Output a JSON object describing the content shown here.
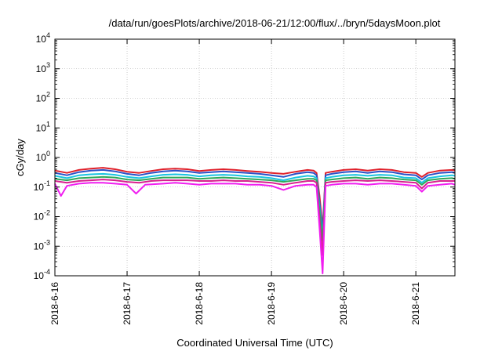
{
  "chart_data": {
    "type": "line",
    "title": "/data/run/goesPlots/archive/2018-06-21/12:00/flux/../bryn/5daysMoon.plot",
    "xlabel": "Coordinated Universal Time (UTC)",
    "ylabel": "cGy/day",
    "yscale": "log",
    "ylim": [
      0.0001,
      10000
    ],
    "xlim": [
      "2018-06-16T00:00",
      "2018-06-21T13:00"
    ],
    "yticks": [
      {
        "value": 0.0001,
        "base": "10",
        "exp": "-4"
      },
      {
        "value": 0.001,
        "base": "10",
        "exp": "-3"
      },
      {
        "value": 0.01,
        "base": "10",
        "exp": "-2"
      },
      {
        "value": 0.1,
        "base": "10",
        "exp": "-1"
      },
      {
        "value": 1,
        "base": "10",
        "exp": "0"
      },
      {
        "value": 10,
        "base": "10",
        "exp": "1"
      },
      {
        "value": 100,
        "base": "10",
        "exp": "2"
      },
      {
        "value": 1000,
        "base": "10",
        "exp": "3"
      },
      {
        "value": 10000,
        "base": "10",
        "exp": "4"
      }
    ],
    "xticks": [
      {
        "value": "2018-06-16T00:00",
        "label": "2018-6-16"
      },
      {
        "value": "2018-06-17T00:00",
        "label": "2018-6-17"
      },
      {
        "value": "2018-06-18T00:00",
        "label": "2018-6-18"
      },
      {
        "value": "2018-06-19T00:00",
        "label": "2018-6-19"
      },
      {
        "value": "2018-06-20T00:00",
        "label": "2018-6-20"
      },
      {
        "value": "2018-06-21T00:00",
        "label": "2018-6-21"
      }
    ],
    "grid": true,
    "legend": "none",
    "series": [
      {
        "color": "#e0202a",
        "points": [
          [
            "2018-06-16T00:00",
            0.36
          ],
          [
            "2018-06-16T04:00",
            0.3
          ],
          [
            "2018-06-16T08:00",
            0.38
          ],
          [
            "2018-06-16T12:00",
            0.42
          ],
          [
            "2018-06-16T16:00",
            0.45
          ],
          [
            "2018-06-16T20:00",
            0.4
          ],
          [
            "2018-06-17T00:00",
            0.33
          ],
          [
            "2018-06-17T04:00",
            0.3
          ],
          [
            "2018-06-17T08:00",
            0.35
          ],
          [
            "2018-06-17T12:00",
            0.4
          ],
          [
            "2018-06-17T16:00",
            0.42
          ],
          [
            "2018-06-17T20:00",
            0.4
          ],
          [
            "2018-06-18T00:00",
            0.35
          ],
          [
            "2018-06-18T04:00",
            0.38
          ],
          [
            "2018-06-18T08:00",
            0.4
          ],
          [
            "2018-06-18T12:00",
            0.38
          ],
          [
            "2018-06-18T16:00",
            0.35
          ],
          [
            "2018-06-18T20:00",
            0.33
          ],
          [
            "2018-06-19T00:00",
            0.3
          ],
          [
            "2018-06-19T04:00",
            0.28
          ],
          [
            "2018-06-19T08:00",
            0.33
          ],
          [
            "2018-06-19T12:00",
            0.38
          ],
          [
            "2018-06-19T14:00",
            0.36
          ],
          [
            "2018-06-19T15:00",
            0.3
          ],
          [
            "2018-06-19T16:00",
            0.05
          ],
          [
            "2018-06-19T17:00",
            0.004
          ],
          [
            "2018-06-19T18:00",
            0.3
          ],
          [
            "2018-06-19T20:00",
            0.33
          ],
          [
            "2018-06-20T00:00",
            0.38
          ],
          [
            "2018-06-20T04:00",
            0.4
          ],
          [
            "2018-06-20T08:00",
            0.36
          ],
          [
            "2018-06-20T12:00",
            0.4
          ],
          [
            "2018-06-20T16:00",
            0.38
          ],
          [
            "2018-06-20T20:00",
            0.32
          ],
          [
            "2018-06-21T00:00",
            0.3
          ],
          [
            "2018-06-21T02:00",
            0.22
          ],
          [
            "2018-06-21T04:00",
            0.3
          ],
          [
            "2018-06-21T08:00",
            0.36
          ],
          [
            "2018-06-21T12:00",
            0.38
          ],
          [
            "2018-06-21T13:00",
            0.36
          ]
        ]
      },
      {
        "color": "#2a52c8",
        "points": [
          [
            "2018-06-16T00:00",
            0.3
          ],
          [
            "2018-06-16T04:00",
            0.25
          ],
          [
            "2018-06-16T08:00",
            0.32
          ],
          [
            "2018-06-16T12:00",
            0.36
          ],
          [
            "2018-06-16T16:00",
            0.38
          ],
          [
            "2018-06-16T20:00",
            0.34
          ],
          [
            "2018-06-17T00:00",
            0.28
          ],
          [
            "2018-06-17T04:00",
            0.25
          ],
          [
            "2018-06-17T08:00",
            0.3
          ],
          [
            "2018-06-17T12:00",
            0.34
          ],
          [
            "2018-06-17T16:00",
            0.36
          ],
          [
            "2018-06-17T20:00",
            0.34
          ],
          [
            "2018-06-18T00:00",
            0.3
          ],
          [
            "2018-06-18T04:00",
            0.32
          ],
          [
            "2018-06-18T08:00",
            0.34
          ],
          [
            "2018-06-18T12:00",
            0.32
          ],
          [
            "2018-06-18T16:00",
            0.3
          ],
          [
            "2018-06-18T20:00",
            0.28
          ],
          [
            "2018-06-19T00:00",
            0.25
          ],
          [
            "2018-06-19T04:00",
            0.22
          ],
          [
            "2018-06-19T08:00",
            0.28
          ],
          [
            "2018-06-19T12:00",
            0.32
          ],
          [
            "2018-06-19T14:00",
            0.3
          ],
          [
            "2018-06-19T15:00",
            0.25
          ],
          [
            "2018-06-19T16:00",
            0.03
          ],
          [
            "2018-06-19T17:00",
            0.003
          ],
          [
            "2018-06-19T18:00",
            0.25
          ],
          [
            "2018-06-19T20:00",
            0.28
          ],
          [
            "2018-06-20T00:00",
            0.32
          ],
          [
            "2018-06-20T04:00",
            0.34
          ],
          [
            "2018-06-20T08:00",
            0.3
          ],
          [
            "2018-06-20T12:00",
            0.34
          ],
          [
            "2018-06-20T16:00",
            0.32
          ],
          [
            "2018-06-20T20:00",
            0.27
          ],
          [
            "2018-06-21T00:00",
            0.25
          ],
          [
            "2018-06-21T02:00",
            0.18
          ],
          [
            "2018-06-21T04:00",
            0.25
          ],
          [
            "2018-06-21T08:00",
            0.3
          ],
          [
            "2018-06-21T12:00",
            0.32
          ],
          [
            "2018-06-21T13:00",
            0.3
          ]
        ]
      },
      {
        "color": "#19c4e0",
        "points": [
          [
            "2018-06-16T00:00",
            0.24
          ],
          [
            "2018-06-16T04:00",
            0.2
          ],
          [
            "2018-06-16T08:00",
            0.25
          ],
          [
            "2018-06-16T12:00",
            0.27
          ],
          [
            "2018-06-16T16:00",
            0.28
          ],
          [
            "2018-06-16T20:00",
            0.26
          ],
          [
            "2018-06-17T00:00",
            0.22
          ],
          [
            "2018-06-17T04:00",
            0.2
          ],
          [
            "2018-06-17T08:00",
            0.23
          ],
          [
            "2018-06-17T12:00",
            0.26
          ],
          [
            "2018-06-17T16:00",
            0.27
          ],
          [
            "2018-06-17T20:00",
            0.26
          ],
          [
            "2018-06-18T00:00",
            0.23
          ],
          [
            "2018-06-18T04:00",
            0.25
          ],
          [
            "2018-06-18T08:00",
            0.26
          ],
          [
            "2018-06-18T12:00",
            0.25
          ],
          [
            "2018-06-18T16:00",
            0.23
          ],
          [
            "2018-06-18T20:00",
            0.22
          ],
          [
            "2018-06-19T00:00",
            0.2
          ],
          [
            "2018-06-19T04:00",
            0.17
          ],
          [
            "2018-06-19T08:00",
            0.21
          ],
          [
            "2018-06-19T12:00",
            0.24
          ],
          [
            "2018-06-19T14:00",
            0.23
          ],
          [
            "2018-06-19T15:00",
            0.2
          ],
          [
            "2018-06-19T16:00",
            0.02
          ],
          [
            "2018-06-19T17:00",
            0.002
          ],
          [
            "2018-06-19T18:00",
            0.2
          ],
          [
            "2018-06-19T20:00",
            0.22
          ],
          [
            "2018-06-20T00:00",
            0.25
          ],
          [
            "2018-06-20T04:00",
            0.26
          ],
          [
            "2018-06-20T08:00",
            0.24
          ],
          [
            "2018-06-20T12:00",
            0.26
          ],
          [
            "2018-06-20T16:00",
            0.25
          ],
          [
            "2018-06-20T20:00",
            0.21
          ],
          [
            "2018-06-21T00:00",
            0.2
          ],
          [
            "2018-06-21T02:00",
            0.14
          ],
          [
            "2018-06-21T04:00",
            0.2
          ],
          [
            "2018-06-21T08:00",
            0.23
          ],
          [
            "2018-06-21T12:00",
            0.25
          ],
          [
            "2018-06-21T13:00",
            0.24
          ]
        ]
      },
      {
        "color": "#2fa85a",
        "points": [
          [
            "2018-06-16T00:00",
            0.19
          ],
          [
            "2018-06-16T04:00",
            0.17
          ],
          [
            "2018-06-16T08:00",
            0.2
          ],
          [
            "2018-06-16T12:00",
            0.21
          ],
          [
            "2018-06-16T16:00",
            0.22
          ],
          [
            "2018-06-16T20:00",
            0.21
          ],
          [
            "2018-06-17T00:00",
            0.18
          ],
          [
            "2018-06-17T04:00",
            0.17
          ],
          [
            "2018-06-17T08:00",
            0.19
          ],
          [
            "2018-06-17T12:00",
            0.21
          ],
          [
            "2018-06-17T16:00",
            0.21
          ],
          [
            "2018-06-17T20:00",
            0.21
          ],
          [
            "2018-06-18T00:00",
            0.19
          ],
          [
            "2018-06-18T04:00",
            0.2
          ],
          [
            "2018-06-18T08:00",
            0.21
          ],
          [
            "2018-06-18T12:00",
            0.2
          ],
          [
            "2018-06-18T16:00",
            0.19
          ],
          [
            "2018-06-18T20:00",
            0.18
          ],
          [
            "2018-06-19T00:00",
            0.17
          ],
          [
            "2018-06-19T04:00",
            0.15
          ],
          [
            "2018-06-19T08:00",
            0.17
          ],
          [
            "2018-06-19T12:00",
            0.19
          ],
          [
            "2018-06-19T14:00",
            0.19
          ],
          [
            "2018-06-19T15:00",
            0.17
          ],
          [
            "2018-06-19T16:00",
            0.015
          ],
          [
            "2018-06-19T17:00",
            0.0015
          ],
          [
            "2018-06-19T18:00",
            0.17
          ],
          [
            "2018-06-19T20:00",
            0.18
          ],
          [
            "2018-06-20T00:00",
            0.2
          ],
          [
            "2018-06-20T04:00",
            0.21
          ],
          [
            "2018-06-20T08:00",
            0.19
          ],
          [
            "2018-06-20T12:00",
            0.21
          ],
          [
            "2018-06-20T16:00",
            0.2
          ],
          [
            "2018-06-20T20:00",
            0.18
          ],
          [
            "2018-06-21T00:00",
            0.17
          ],
          [
            "2018-06-21T02:00",
            0.12
          ],
          [
            "2018-06-21T04:00",
            0.17
          ],
          [
            "2018-06-21T08:00",
            0.19
          ],
          [
            "2018-06-21T12:00",
            0.2
          ],
          [
            "2018-06-21T13:00",
            0.19
          ]
        ]
      },
      {
        "color": "#d81f8e",
        "points": [
          [
            "2018-06-16T00:00",
            0.16
          ],
          [
            "2018-06-16T04:00",
            0.14
          ],
          [
            "2018-06-16T08:00",
            0.16
          ],
          [
            "2018-06-16T12:00",
            0.17
          ],
          [
            "2018-06-16T16:00",
            0.18
          ],
          [
            "2018-06-16T20:00",
            0.17
          ],
          [
            "2018-06-17T00:00",
            0.15
          ],
          [
            "2018-06-17T04:00",
            0.14
          ],
          [
            "2018-06-17T08:00",
            0.16
          ],
          [
            "2018-06-17T12:00",
            0.17
          ],
          [
            "2018-06-17T16:00",
            0.17
          ],
          [
            "2018-06-17T20:00",
            0.17
          ],
          [
            "2018-06-18T00:00",
            0.16
          ],
          [
            "2018-06-18T04:00",
            0.16
          ],
          [
            "2018-06-18T08:00",
            0.17
          ],
          [
            "2018-06-18T12:00",
            0.16
          ],
          [
            "2018-06-18T16:00",
            0.16
          ],
          [
            "2018-06-18T20:00",
            0.15
          ],
          [
            "2018-06-19T00:00",
            0.14
          ],
          [
            "2018-06-19T04:00",
            0.12
          ],
          [
            "2018-06-19T08:00",
            0.14
          ],
          [
            "2018-06-19T12:00",
            0.16
          ],
          [
            "2018-06-19T14:00",
            0.16
          ],
          [
            "2018-06-19T15:00",
            0.14
          ],
          [
            "2018-06-19T16:00",
            0.008
          ],
          [
            "2018-06-19T17:00",
            0.0005
          ],
          [
            "2018-06-19T18:00",
            0.14
          ],
          [
            "2018-06-19T20:00",
            0.15
          ],
          [
            "2018-06-20T00:00",
            0.16
          ],
          [
            "2018-06-20T04:00",
            0.17
          ],
          [
            "2018-06-20T08:00",
            0.16
          ],
          [
            "2018-06-20T12:00",
            0.17
          ],
          [
            "2018-06-20T16:00",
            0.16
          ],
          [
            "2018-06-20T20:00",
            0.15
          ],
          [
            "2018-06-21T00:00",
            0.14
          ],
          [
            "2018-06-21T02:00",
            0.09
          ],
          [
            "2018-06-21T04:00",
            0.14
          ],
          [
            "2018-06-21T08:00",
            0.16
          ],
          [
            "2018-06-21T12:00",
            0.16
          ],
          [
            "2018-06-21T13:00",
            0.16
          ]
        ]
      },
      {
        "color": "#f01ef0",
        "points": [
          [
            "2018-06-16T00:00",
            0.13
          ],
          [
            "2018-06-16T02:00",
            0.05
          ],
          [
            "2018-06-16T04:00",
            0.11
          ],
          [
            "2018-06-16T08:00",
            0.13
          ],
          [
            "2018-06-16T12:00",
            0.14
          ],
          [
            "2018-06-16T16:00",
            0.14
          ],
          [
            "2018-06-16T20:00",
            0.13
          ],
          [
            "2018-06-17T00:00",
            0.12
          ],
          [
            "2018-06-17T03:00",
            0.06
          ],
          [
            "2018-06-17T06:00",
            0.12
          ],
          [
            "2018-06-17T12:00",
            0.13
          ],
          [
            "2018-06-17T16:00",
            0.14
          ],
          [
            "2018-06-17T20:00",
            0.13
          ],
          [
            "2018-06-18T00:00",
            0.12
          ],
          [
            "2018-06-18T04:00",
            0.13
          ],
          [
            "2018-06-18T08:00",
            0.13
          ],
          [
            "2018-06-18T12:00",
            0.13
          ],
          [
            "2018-06-18T16:00",
            0.12
          ],
          [
            "2018-06-18T20:00",
            0.12
          ],
          [
            "2018-06-19T00:00",
            0.11
          ],
          [
            "2018-06-19T04:00",
            0.08
          ],
          [
            "2018-06-19T08:00",
            0.11
          ],
          [
            "2018-06-19T12:00",
            0.12
          ],
          [
            "2018-06-19T14:00",
            0.12
          ],
          [
            "2018-06-19T15:00",
            0.1
          ],
          [
            "2018-06-19T16:00",
            0.004
          ],
          [
            "2018-06-19T17:00",
            0.00012
          ],
          [
            "2018-06-19T18:00",
            0.11
          ],
          [
            "2018-06-19T20:00",
            0.12
          ],
          [
            "2018-06-20T00:00",
            0.13
          ],
          [
            "2018-06-20T04:00",
            0.13
          ],
          [
            "2018-06-20T08:00",
            0.12
          ],
          [
            "2018-06-20T12:00",
            0.13
          ],
          [
            "2018-06-20T16:00",
            0.13
          ],
          [
            "2018-06-20T20:00",
            0.12
          ],
          [
            "2018-06-21T00:00",
            0.11
          ],
          [
            "2018-06-21T02:00",
            0.07
          ],
          [
            "2018-06-21T04:00",
            0.11
          ],
          [
            "2018-06-21T08:00",
            0.12
          ],
          [
            "2018-06-21T12:00",
            0.13
          ],
          [
            "2018-06-21T13:00",
            0.12
          ]
        ]
      }
    ]
  }
}
